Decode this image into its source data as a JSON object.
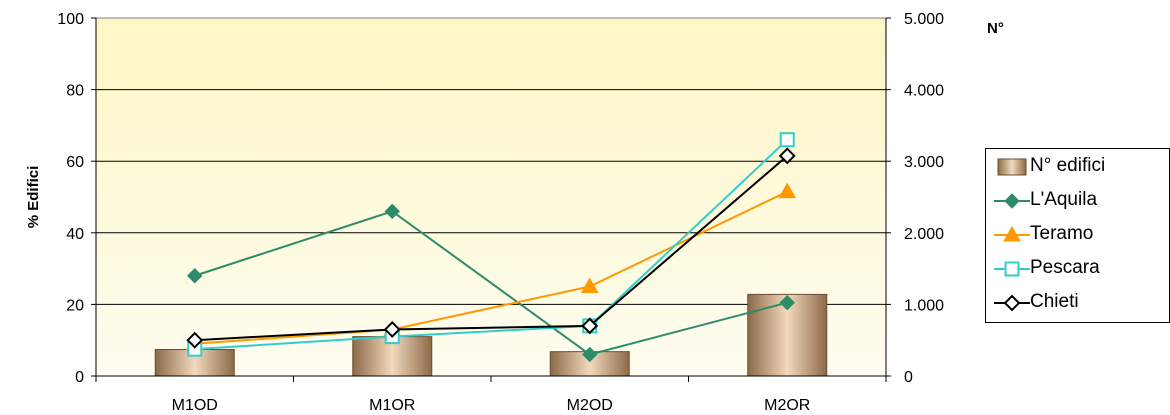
{
  "chart_data": {
    "type": "bar+line",
    "categories": [
      "M1OD",
      "M1OR",
      "M2OD",
      "M2OR"
    ],
    "ylabel": "% Edifici",
    "y2label": "N°",
    "ylim": [
      0,
      100
    ],
    "y2lim": [
      0,
      5000
    ],
    "yticks": [
      "0",
      "20",
      "40",
      "60",
      "80",
      "100"
    ],
    "y2ticks": [
      "0",
      "1.000",
      "2.000",
      "3.000",
      "4.000",
      "5.000"
    ],
    "grid": true,
    "legend_position": "right",
    "bar_series": {
      "name": "N° edifici",
      "axis": "right",
      "values": [
        370,
        550,
        340,
        1140
      ],
      "color": "#c49a70"
    },
    "series": [
      {
        "name": "L'Aquila",
        "values": [
          28,
          46,
          6,
          20.5
        ],
        "color": "#2e8b6a",
        "marker": "diamond"
      },
      {
        "name": "Teramo",
        "values": [
          9,
          13,
          25,
          51.5
        ],
        "color": "#ff9900",
        "marker": "triangle"
      },
      {
        "name": "Pescara",
        "values": [
          7.5,
          11,
          14,
          66
        ],
        "color": "#33cccc",
        "marker": "square-open"
      },
      {
        "name": "Chieti",
        "values": [
          10,
          13,
          14,
          61.5
        ],
        "color": "#000000",
        "marker": "diamond-open"
      }
    ]
  }
}
